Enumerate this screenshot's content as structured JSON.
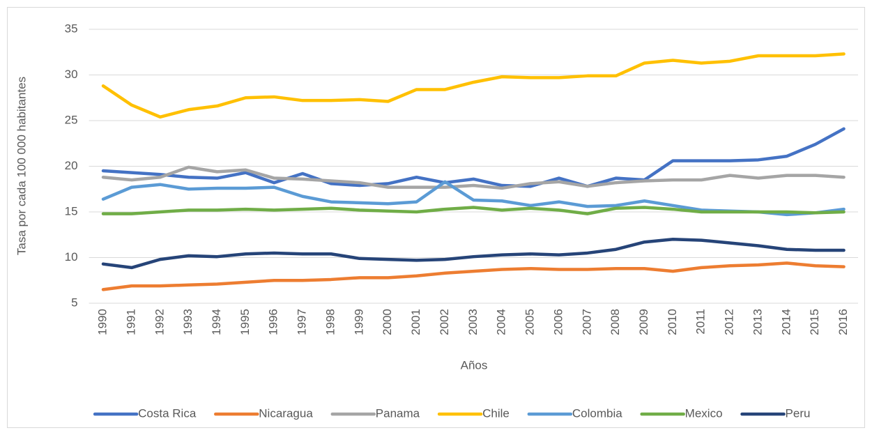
{
  "chart_data": {
    "type": "line",
    "y_label": "Tasa por cada 100 000 habitantes",
    "x_label": "Años",
    "categories": [
      "1990",
      "1991",
      "1992",
      "1993",
      "1994",
      "1995",
      "1996",
      "1997",
      "1998",
      "1999",
      "2000",
      "2001",
      "2002",
      "2003",
      "2004",
      "2005",
      "2006",
      "2007",
      "2008",
      "2009",
      "2010",
      "2011",
      "2012",
      "2013",
      "2014",
      "2015",
      "2016"
    ],
    "ylim": [
      5,
      35
    ],
    "yticks": [
      5,
      10,
      15,
      20,
      25,
      30,
      35
    ],
    "grid": true,
    "legend": "bottom",
    "series": [
      {
        "name": "Costa Rica",
        "color": "#4472c4",
        "values": [
          19.5,
          19.3,
          19.1,
          18.8,
          18.7,
          19.3,
          18.2,
          19.2,
          18.1,
          17.9,
          18.1,
          18.8,
          18.2,
          18.6,
          17.9,
          17.8,
          18.7,
          17.8,
          18.7,
          18.5,
          20.6,
          20.6,
          20.6,
          20.7,
          21.1,
          22.4,
          24.1
        ]
      },
      {
        "name": "Nicaragua",
        "color": "#ed7d31",
        "values": [
          6.5,
          6.9,
          6.9,
          7.0,
          7.1,
          7.3,
          7.5,
          7.5,
          7.6,
          7.8,
          7.8,
          8.0,
          8.3,
          8.5,
          8.7,
          8.8,
          8.7,
          8.7,
          8.8,
          8.8,
          8.5,
          8.9,
          9.1,
          9.2,
          9.4,
          9.1,
          9.0
        ]
      },
      {
        "name": "Panama",
        "color": "#a5a5a5",
        "values": [
          18.8,
          18.5,
          18.8,
          19.9,
          19.4,
          19.6,
          18.7,
          18.6,
          18.4,
          18.2,
          17.7,
          17.7,
          17.7,
          17.9,
          17.6,
          18.1,
          18.3,
          17.8,
          18.2,
          18.4,
          18.5,
          18.5,
          19.0,
          18.7,
          19.0,
          19.0,
          18.8
        ]
      },
      {
        "name": "Chile",
        "color": "#ffc000",
        "values": [
          28.8,
          26.7,
          25.4,
          26.2,
          26.6,
          27.5,
          27.6,
          27.2,
          27.2,
          27.3,
          27.1,
          28.4,
          28.4,
          29.2,
          29.8,
          29.7,
          29.7,
          29.9,
          29.9,
          31.3,
          31.6,
          31.3,
          31.5,
          32.1,
          32.1,
          32.1,
          32.3
        ]
      },
      {
        "name": "Colombia",
        "color": "#5b9bd5",
        "values": [
          16.4,
          17.7,
          18.0,
          17.5,
          17.6,
          17.6,
          17.7,
          16.7,
          16.1,
          16.0,
          15.9,
          16.1,
          18.3,
          16.3,
          16.2,
          15.7,
          16.1,
          15.6,
          15.7,
          16.2,
          15.7,
          15.2,
          15.1,
          15.0,
          14.7,
          14.9,
          15.3
        ]
      },
      {
        "name": "Mexico",
        "color": "#70ad47",
        "values": [
          14.8,
          14.8,
          15.0,
          15.2,
          15.2,
          15.3,
          15.2,
          15.3,
          15.4,
          15.2,
          15.1,
          15.0,
          15.3,
          15.5,
          15.2,
          15.4,
          15.2,
          14.8,
          15.4,
          15.5,
          15.3,
          15.0,
          15.0,
          15.0,
          15.0,
          14.9,
          15.0
        ]
      },
      {
        "name": "Peru",
        "color": "#264478",
        "values": [
          9.3,
          8.9,
          9.8,
          10.2,
          10.1,
          10.4,
          10.5,
          10.4,
          10.4,
          9.9,
          9.8,
          9.7,
          9.8,
          10.1,
          10.3,
          10.4,
          10.3,
          10.5,
          10.9,
          11.7,
          12.0,
          11.9,
          11.6,
          11.3,
          10.9,
          10.8,
          10.8
        ]
      }
    ]
  }
}
